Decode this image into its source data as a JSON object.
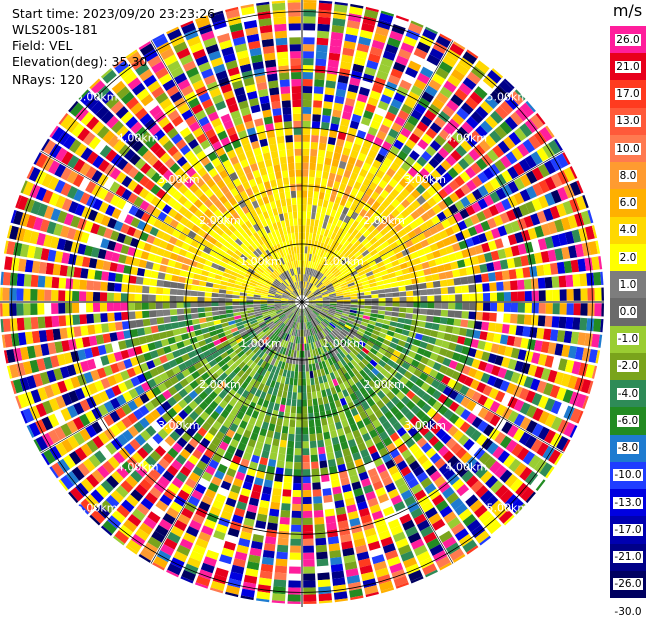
{
  "info": {
    "start_time": "Start time: 2023/09/20 23:23:26",
    "station": "WLS200s-181",
    "field": "Field: VEL",
    "elevation": "Elevation(deg): 35.30",
    "nrays": "NRays: 120"
  },
  "colorbar": {
    "unit": "m/s",
    "ticks": [
      "26.0",
      "21.0",
      "17.0",
      "13.0",
      "10.0",
      "8.0",
      "6.0",
      "4.0",
      "2.0",
      "1.0",
      "0.0",
      "-1.0",
      "-2.0",
      "-4.0",
      "-6.0",
      "-8.0",
      "-10.0",
      "-13.0",
      "-17.0",
      "-21.0",
      "-26.0",
      "-30.0"
    ],
    "colors": [
      "#ff1e9c",
      "#e8001c",
      "#ff3b1f",
      "#ff5a3a",
      "#ff7a50",
      "#ff9b30",
      "#ffb000",
      "#ffd800",
      "#ffff00",
      "#7d7d7d",
      "#6a6a6a",
      "#9acd32",
      "#7aa41c",
      "#2e8b57",
      "#228b22",
      "#1e7bd0",
      "#1f3dff",
      "#0000e0",
      "#0000b0",
      "#000088",
      "#000060"
    ]
  },
  "range_rings": {
    "labels": [
      "1.00km",
      "2.00km",
      "3.00km",
      "4.00km",
      "5.00km"
    ]
  },
  "chart_data": {
    "type": "heatmap",
    "title": "",
    "field": "VEL",
    "unit": "m/s",
    "nrays": 120,
    "elevation_deg": 35.3,
    "range_rings_km": [
      1,
      2,
      3,
      4,
      5
    ],
    "max_range_km": 5.2,
    "colorbar_ticks": [
      26.0,
      21.0,
      17.0,
      13.0,
      10.0,
      8.0,
      6.0,
      4.0,
      2.0,
      1.0,
      0.0,
      -1.0,
      -2.0,
      -4.0,
      -6.0,
      -8.0,
      -10.0,
      -13.0,
      -17.0,
      -21.0,
      -26.0,
      -30.0
    ],
    "pattern": {
      "north_sector": "positive 2 to 6 m/s (yellow/orange) within ~3 km",
      "south_sector": "negative -2 to -8 m/s (green) within ~3 km",
      "near_center": "around 0 to 1 m/s (gray)",
      "beyond_3km": "noisy mixed values across full scale"
    }
  }
}
